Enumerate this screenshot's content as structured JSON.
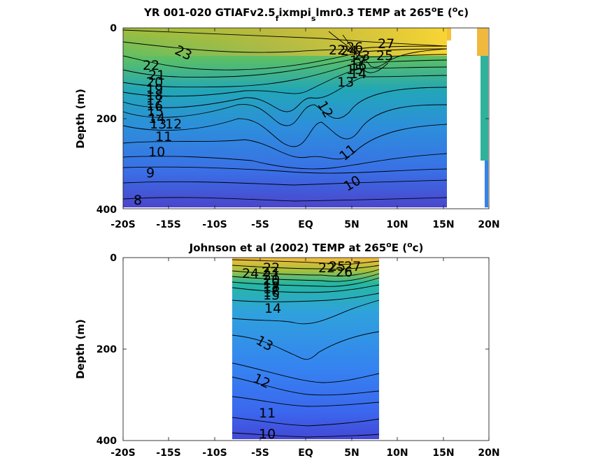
{
  "chart_data": [
    {
      "type": "heatmap",
      "title_main": "YR 001-020 GTIAFv2.5",
      "title_sub1": "f",
      "title_mid": "ixmpi",
      "title_sub2": "s",
      "title_end": "lmr0.3 TEMP at 265",
      "title_deg": "o",
      "title_tail1": "E (",
      "title_unit_sup": "o",
      "title_tail2": "c)",
      "ylabel": "Depth (m)",
      "x_ticks": [
        "-20S",
        "-15S",
        "-10S",
        "-5S",
        "EQ",
        "5N",
        "10N",
        "15N",
        "20N"
      ],
      "y_ticks": [
        "0",
        "200",
        "400"
      ],
      "xlim": [
        -20,
        20
      ],
      "ylim": [
        0,
        400
      ],
      "coverage_lat": [
        -17.5,
        20
      ],
      "contour_labels": [
        "23",
        "22",
        "21",
        "20",
        "19",
        "18",
        "17",
        "16",
        "15",
        "14",
        "13",
        "12",
        "11",
        "10",
        "9",
        "8",
        "22",
        "25",
        "26",
        "27",
        "24",
        "23",
        "17",
        "16",
        "15",
        "14",
        "13",
        "12",
        "11",
        "10"
      ]
    },
    {
      "type": "heatmap",
      "title_main": "Johnson et al (2002) TEMP at 265",
      "title_deg": "o",
      "title_tail1": "E (",
      "title_unit_sup": "o",
      "title_tail2": "c)",
      "ylabel": "Depth (m)",
      "x_ticks": [
        "-20S",
        "-15S",
        "-10S",
        "-5S",
        "EQ",
        "5N",
        "10N",
        "15N",
        "20N"
      ],
      "y_ticks": [
        "0",
        "200",
        "400"
      ],
      "xlim": [
        -20,
        20
      ],
      "ylim": [
        0,
        400
      ],
      "coverage_lat": [
        -8,
        8
      ],
      "contour_labels": [
        "24",
        "23",
        "22",
        "21",
        "20",
        "19",
        "18",
        "17",
        "16",
        "15",
        "14",
        "13",
        "12",
        "11",
        "10",
        "22",
        "25",
        "26",
        "27"
      ]
    }
  ]
}
